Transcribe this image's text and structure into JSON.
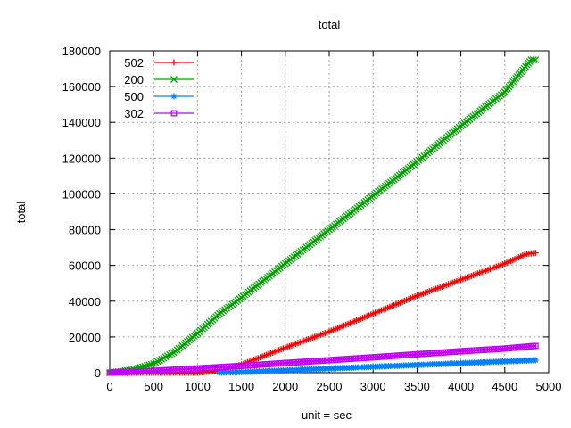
{
  "chart_data": {
    "type": "line",
    "title": "total",
    "xlabel": "unit = sec",
    "ylabel": "total",
    "xlim": [
      0,
      5000
    ],
    "ylim": [
      0,
      180000
    ],
    "xticks": [
      "0",
      "500",
      "1000",
      "1500",
      "2000",
      "2500",
      "3000",
      "3500",
      "4000",
      "4500",
      "5000"
    ],
    "yticks": [
      "0",
      "20000",
      "40000",
      "60000",
      "80000",
      "100000",
      "120000",
      "140000",
      "160000",
      "180000"
    ],
    "grid": true,
    "legend_position": "top-left",
    "series": [
      {
        "name": "502",
        "color": "#ff0000",
        "marker": "plus",
        "x": [
          0,
          500,
          1000,
          1300,
          1500,
          2000,
          2500,
          3000,
          3500,
          4000,
          4500,
          4750,
          4850
        ],
        "y": [
          0,
          0,
          0,
          1500,
          4500,
          14000,
          23000,
          33000,
          43000,
          52000,
          61000,
          66500,
          67000
        ]
      },
      {
        "name": "200",
        "color": "#00a000",
        "marker": "x",
        "x": [
          0,
          250,
          500,
          750,
          1000,
          1250,
          1500,
          2000,
          2500,
          3000,
          3500,
          4000,
          4500,
          4800,
          4850
        ],
        "y": [
          0,
          1500,
          5000,
          12000,
          22000,
          33000,
          42000,
          61000,
          80000,
          99000,
          118000,
          138000,
          157000,
          175000,
          175000
        ]
      },
      {
        "name": "500",
        "color": "#0080ff",
        "marker": "star",
        "x": [
          1250,
          1500,
          2000,
          2500,
          3000,
          3500,
          4000,
          4500,
          4850
        ],
        "y": [
          0,
          300,
          1300,
          2300,
          3300,
          4300,
          5300,
          6300,
          7000
        ]
      },
      {
        "name": "302",
        "color": "#c000ff",
        "marker": "square",
        "x": [
          0,
          500,
          1000,
          1500,
          2000,
          2500,
          3000,
          3500,
          4000,
          4500,
          4850
        ],
        "y": [
          0,
          1000,
          2400,
          3800,
          5400,
          7000,
          8600,
          10300,
          12000,
          13500,
          15000
        ]
      }
    ]
  }
}
